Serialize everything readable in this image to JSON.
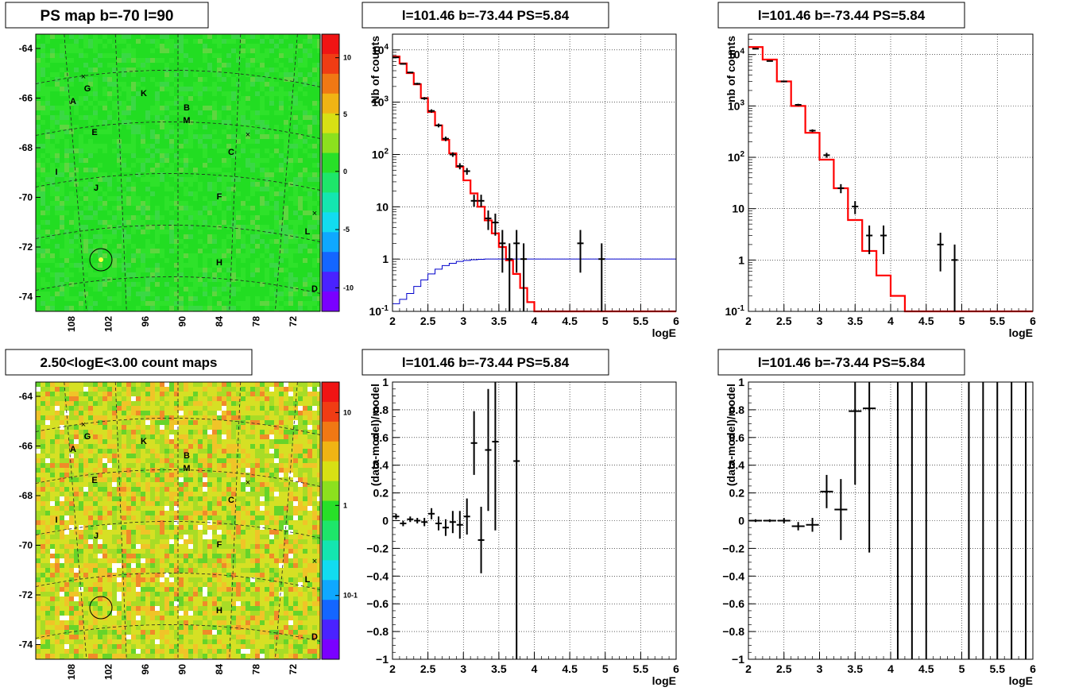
{
  "colors": {
    "map_green": "#22dd22",
    "map_yellow_green": "#c8e62a",
    "model_red": "#ff0000",
    "model_blue": "#0000cc",
    "data_black": "#000000",
    "grid": "#000000"
  },
  "panels": {
    "ps_map": {
      "title": "PS map b=-70 l=90",
      "y_ticks": [
        "-64",
        "-66",
        "-68",
        "-70",
        "-72",
        "-74"
      ],
      "x_ticks": [
        "108",
        "102",
        "96",
        "90",
        "84",
        "78",
        "72"
      ],
      "colorbar_ticks": [
        "10",
        "5",
        "0",
        "-5",
        "-10"
      ],
      "labels": [
        "A",
        "B",
        "C",
        "D",
        "E",
        "F",
        "G",
        "H",
        "I",
        "J",
        "K",
        "L",
        "M"
      ]
    },
    "count_map": {
      "title": "2.50<logE<3.00 count maps",
      "y_ticks": [
        "-64",
        "-66",
        "-68",
        "-70",
        "-72",
        "-74"
      ],
      "x_ticks": [
        "108",
        "102",
        "96",
        "90",
        "84",
        "78",
        "72"
      ],
      "colorbar_ticks": [
        "10",
        "1",
        "10-1"
      ],
      "labels": [
        "A",
        "B",
        "C",
        "D",
        "E",
        "F",
        "G",
        "H",
        "I",
        "J",
        "K",
        "L",
        "M"
      ]
    }
  },
  "chart_data": [
    {
      "id": "spectrum_fine",
      "type": "line",
      "title": "l=101.46 b=-73.44 PS=5.84",
      "xlabel": "logE",
      "ylabel": "Nb of counts",
      "xlim": [
        2,
        6
      ],
      "ylim": [
        0.1,
        20000
      ],
      "yscale": "log",
      "grid": true,
      "x_ticks": [
        "2",
        "2.5",
        "3",
        "3.5",
        "4",
        "4.5",
        "5",
        "5.5",
        "6"
      ],
      "y_ticks": [
        "10^-1",
        "1",
        "10",
        "10^2",
        "10^3",
        "10^4"
      ],
      "series": [
        {
          "role": "model-red",
          "type": "step",
          "bin_width": 0.1,
          "x": [
            2.0,
            2.1,
            2.2,
            2.3,
            2.4,
            2.5,
            2.6,
            2.7,
            2.8,
            2.9,
            3.0,
            3.1,
            3.2,
            3.3,
            3.4,
            3.5,
            3.6,
            3.7,
            3.8,
            3.9,
            4.0,
            4.1
          ],
          "y": [
            7500,
            5500,
            3600,
            2200,
            1200,
            650,
            360,
            190,
            105,
            58,
            32,
            18,
            10,
            5.5,
            3.1,
            1.7,
            0.95,
            0.52,
            0.28,
            0.15,
            0.1,
            0.1
          ]
        },
        {
          "role": "model-blue",
          "type": "step",
          "bin_width": 0.1,
          "x": [
            2.0,
            2.1,
            2.2,
            2.3,
            2.4,
            2.5,
            2.6,
            2.7,
            2.8,
            2.9,
            3.0,
            3.1,
            3.2,
            3.3,
            3.4,
            3.5,
            3.6,
            3.7,
            3.8,
            3.9,
            4.0
          ],
          "y": [
            0.14,
            0.17,
            0.22,
            0.3,
            0.4,
            0.52,
            0.64,
            0.75,
            0.83,
            0.9,
            0.94,
            0.97,
            0.99,
            1.0,
            1.0,
            1.0,
            1.0,
            1.0,
            1.0,
            1.0,
            1.0
          ]
        },
        {
          "role": "data",
          "type": "errorbar",
          "points": [
            {
              "x": 2.05,
              "y": 7200,
              "lo": 7000,
              "hi": 7400
            },
            {
              "x": 2.15,
              "y": 5400,
              "lo": 5250,
              "hi": 5550
            },
            {
              "x": 2.25,
              "y": 3700,
              "lo": 3600,
              "hi": 3800
            },
            {
              "x": 2.35,
              "y": 2250,
              "lo": 2150,
              "hi": 2350
            },
            {
              "x": 2.45,
              "y": 1180,
              "lo": 1110,
              "hi": 1250
            },
            {
              "x": 2.55,
              "y": 680,
              "lo": 630,
              "hi": 730
            },
            {
              "x": 2.65,
              "y": 360,
              "lo": 330,
              "hi": 390
            },
            {
              "x": 2.75,
              "y": 200,
              "lo": 180,
              "hi": 220
            },
            {
              "x": 2.85,
              "y": 100,
              "lo": 90,
              "hi": 110
            },
            {
              "x": 2.95,
              "y": 60,
              "lo": 52,
              "hi": 68
            },
            {
              "x": 3.05,
              "y": 48,
              "lo": 41,
              "hi": 55
            },
            {
              "x": 3.15,
              "y": 13,
              "lo": 10,
              "hi": 17
            },
            {
              "x": 3.25,
              "y": 13,
              "lo": 10,
              "hi": 17
            },
            {
              "x": 3.35,
              "y": 6,
              "lo": 3.6,
              "hi": 8.5
            },
            {
              "x": 3.45,
              "y": 5,
              "lo": 2.8,
              "hi": 7.4
            },
            {
              "x": 3.55,
              "y": 2,
              "lo": 0.55,
              "hi": 3.6
            },
            {
              "x": 3.65,
              "y": 1,
              "lo": 0.1,
              "hi": 2
            },
            {
              "x": 3.75,
              "y": 2,
              "lo": 0.55,
              "hi": 3.6
            },
            {
              "x": 3.85,
              "y": 1,
              "lo": 0.1,
              "hi": 2
            },
            {
              "x": 4.65,
              "y": 2,
              "lo": 0.55,
              "hi": 3.6
            },
            {
              "x": 4.95,
              "y": 1,
              "lo": 0.1,
              "hi": 2
            }
          ]
        }
      ]
    },
    {
      "id": "spectrum_coarse",
      "type": "line",
      "title": "l=101.46 b=-73.44 PS=5.84",
      "xlabel": "logE",
      "ylabel": "nb of counts",
      "xlim": [
        2,
        6
      ],
      "ylim": [
        0.1,
        25000
      ],
      "yscale": "log",
      "grid": true,
      "x_ticks": [
        "2",
        "2.5",
        "3",
        "3.5",
        "4",
        "4.5",
        "5",
        "5.5",
        "6"
      ],
      "y_ticks": [
        "10^-1",
        "1",
        "10",
        "10^2",
        "10^3",
        "10^4"
      ],
      "series": [
        {
          "role": "model-red",
          "type": "step",
          "bin_width": 0.2,
          "x": [
            2.0,
            2.2,
            2.4,
            2.6,
            2.8,
            3.0,
            3.2,
            3.4,
            3.6,
            3.8,
            4.0,
            4.2
          ],
          "y": [
            14000,
            8000,
            3000,
            1000,
            300,
            90,
            25,
            6,
            1.5,
            0.5,
            0.2,
            0.1
          ]
        },
        {
          "role": "data",
          "type": "errorbar",
          "points": [
            {
              "x": 2.1,
              "y": 13000,
              "lo": 12800,
              "hi": 13200
            },
            {
              "x": 2.3,
              "y": 7500,
              "lo": 7350,
              "hi": 7650
            },
            {
              "x": 2.5,
              "y": 3000,
              "lo": 2900,
              "hi": 3100
            },
            {
              "x": 2.7,
              "y": 1050,
              "lo": 1000,
              "hi": 1100
            },
            {
              "x": 2.9,
              "y": 330,
              "lo": 310,
              "hi": 350
            },
            {
              "x": 3.1,
              "y": 110,
              "lo": 98,
              "hi": 122
            },
            {
              "x": 3.3,
              "y": 25,
              "lo": 20,
              "hi": 30
            },
            {
              "x": 3.5,
              "y": 11,
              "lo": 7.8,
              "hi": 14
            },
            {
              "x": 3.7,
              "y": 3,
              "lo": 1.3,
              "hi": 4.7
            },
            {
              "x": 3.9,
              "y": 3,
              "lo": 1.3,
              "hi": 4.7
            },
            {
              "x": 4.7,
              "y": 2,
              "lo": 0.6,
              "hi": 3.4
            },
            {
              "x": 4.9,
              "y": 1,
              "lo": 0.1,
              "hi": 2
            }
          ]
        }
      ]
    },
    {
      "id": "residual_fine",
      "type": "scatter",
      "title": "l=101.46 b=-73.44 PS=5.84",
      "xlabel": "logE",
      "ylabel": "(data-model)/model",
      "xlim": [
        2,
        6
      ],
      "ylim": [
        -1,
        1
      ],
      "grid": true,
      "x_ticks": [
        "2",
        "2.5",
        "3",
        "3.5",
        "4",
        "4.5",
        "5",
        "5.5",
        "6"
      ],
      "y_ticks": [
        "1",
        "0.8",
        "0.6",
        "0.4",
        "0.2",
        "0",
        "-0.2",
        "-0.4",
        "-0.6",
        "-0.8",
        "-1"
      ],
      "series": [
        {
          "role": "data",
          "type": "errorbar",
          "bin_width": 0.1,
          "points": [
            {
              "x": 2.05,
              "y": 0.03,
              "lo": 0.01,
              "hi": 0.05
            },
            {
              "x": 2.15,
              "y": -0.02,
              "lo": -0.04,
              "hi": 0.0
            },
            {
              "x": 2.25,
              "y": 0.01,
              "lo": -0.01,
              "hi": 0.03
            },
            {
              "x": 2.35,
              "y": 0.0,
              "lo": -0.02,
              "hi": 0.02
            },
            {
              "x": 2.45,
              "y": -0.01,
              "lo": -0.04,
              "hi": 0.02
            },
            {
              "x": 2.55,
              "y": 0.05,
              "lo": 0.01,
              "hi": 0.09
            },
            {
              "x": 2.65,
              "y": -0.02,
              "lo": -0.07,
              "hi": 0.03
            },
            {
              "x": 2.75,
              "y": -0.05,
              "lo": -0.11,
              "hi": 0.01
            },
            {
              "x": 2.85,
              "y": -0.01,
              "lo": -0.09,
              "hi": 0.07
            },
            {
              "x": 2.95,
              "y": -0.03,
              "lo": -0.13,
              "hi": 0.07
            },
            {
              "x": 3.05,
              "y": 0.03,
              "lo": -0.1,
              "hi": 0.16
            },
            {
              "x": 3.15,
              "y": 0.56,
              "lo": 0.33,
              "hi": 0.79
            },
            {
              "x": 3.25,
              "y": -0.14,
              "lo": -0.38,
              "hi": 0.1
            },
            {
              "x": 3.35,
              "y": 0.51,
              "lo": 0.07,
              "hi": 0.95
            },
            {
              "x": 3.45,
              "y": 0.57,
              "lo": -0.07,
              "hi": 1.0
            },
            {
              "x": 3.75,
              "y": 0.43,
              "lo": -1.0,
              "hi": 1.0
            }
          ]
        }
      ]
    },
    {
      "id": "residual_coarse",
      "type": "scatter",
      "title": "l=101.46 b=-73.44 PS=5.84",
      "xlabel": "logE",
      "ylabel": "(data-model)/model",
      "xlim": [
        2,
        6
      ],
      "ylim": [
        -1,
        1
      ],
      "grid": true,
      "x_ticks": [
        "2",
        "2.5",
        "3",
        "3.5",
        "4",
        "4.5",
        "5",
        "5.5",
        "6"
      ],
      "y_ticks": [
        "1",
        "0.8",
        "0.6",
        "0.4",
        "0.2",
        "0",
        "-0.2",
        "-0.4",
        "-0.6",
        "-0.8",
        "-1"
      ],
      "series": [
        {
          "role": "data",
          "type": "errorbar",
          "bin_width": 0.2,
          "points": [
            {
              "x": 2.1,
              "y": 0.0,
              "lo": -0.01,
              "hi": 0.01
            },
            {
              "x": 2.3,
              "y": 0.0,
              "lo": -0.01,
              "hi": 0.01
            },
            {
              "x": 2.5,
              "y": 0.0,
              "lo": -0.02,
              "hi": 0.02
            },
            {
              "x": 2.7,
              "y": -0.04,
              "lo": -0.07,
              "hi": -0.01
            },
            {
              "x": 2.9,
              "y": -0.03,
              "lo": -0.08,
              "hi": 0.02
            },
            {
              "x": 3.1,
              "y": 0.21,
              "lo": 0.09,
              "hi": 0.33
            },
            {
              "x": 3.3,
              "y": 0.08,
              "lo": -0.14,
              "hi": 0.3
            },
            {
              "x": 3.5,
              "y": 0.79,
              "lo": 0.26,
              "hi": 1.0
            },
            {
              "x": 3.7,
              "y": 0.81,
              "lo": -0.23,
              "hi": 1.0
            },
            {
              "x": 4.1,
              "y": null,
              "lo": -1.0,
              "hi": 1.0
            },
            {
              "x": 4.3,
              "y": null,
              "lo": -1.0,
              "hi": 1.0
            },
            {
              "x": 4.5,
              "y": null,
              "lo": -1.0,
              "hi": 1.0
            },
            {
              "x": 5.1,
              "y": null,
              "lo": -1.0,
              "hi": 1.0
            },
            {
              "x": 5.3,
              "y": null,
              "lo": -1.0,
              "hi": 1.0
            },
            {
              "x": 5.5,
              "y": null,
              "lo": -1.0,
              "hi": 1.0
            },
            {
              "x": 5.7,
              "y": null,
              "lo": -1.0,
              "hi": 1.0
            },
            {
              "x": 5.9,
              "y": null,
              "lo": -1.0,
              "hi": 1.0
            }
          ]
        }
      ]
    }
  ]
}
